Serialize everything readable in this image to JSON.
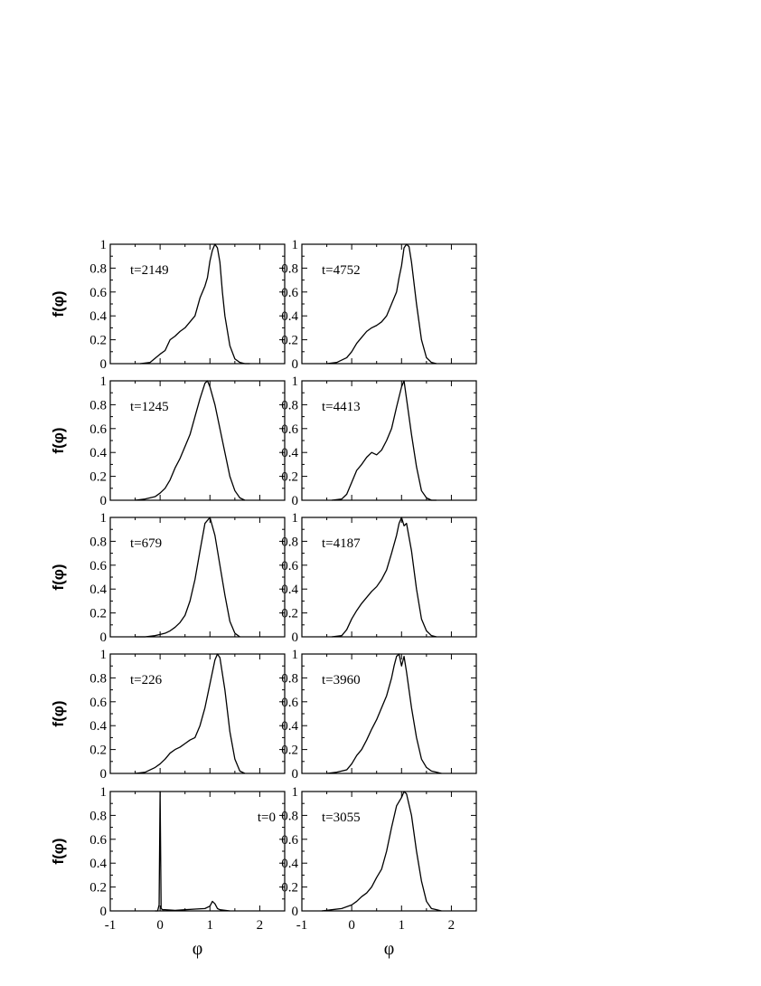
{
  "chart_data": {
    "type": "line",
    "layout": {
      "rows": 5,
      "cols": 2
    },
    "xlim": [
      -1,
      2.5
    ],
    "ylim": [
      0,
      1
    ],
    "xticks": [
      "-1",
      "0",
      "1",
      "2"
    ],
    "yticks": [
      "0",
      "0.2",
      "0.4",
      "0.6",
      "0.8",
      "1"
    ],
    "xlabel": "φ",
    "ylabel": "f(φ)",
    "grid": false,
    "panels": [
      {
        "label": "t=2149",
        "label_pos": "top-left",
        "x": [
          -0.4,
          -0.2,
          0,
          0.1,
          0.2,
          0.3,
          0.4,
          0.5,
          0.6,
          0.7,
          0.8,
          0.9,
          0.95,
          1.0,
          1.05,
          1.1,
          1.15,
          1.2,
          1.25,
          1.3,
          1.4,
          1.5,
          1.6,
          1.7,
          1.8
        ],
        "y": [
          0,
          0.01,
          0.08,
          0.11,
          0.2,
          0.23,
          0.27,
          0.3,
          0.35,
          0.4,
          0.55,
          0.65,
          0.72,
          0.86,
          0.95,
          1.0,
          0.97,
          0.85,
          0.6,
          0.4,
          0.15,
          0.04,
          0.01,
          0,
          0
        ]
      },
      {
        "label": "t=4752",
        "label_pos": "top-left",
        "x": [
          -0.5,
          -0.3,
          -0.1,
          0,
          0.1,
          0.2,
          0.3,
          0.4,
          0.5,
          0.6,
          0.7,
          0.8,
          0.9,
          0.95,
          1.0,
          1.05,
          1.1,
          1.15,
          1.2,
          1.3,
          1.4,
          1.5,
          1.6,
          1.7
        ],
        "y": [
          0,
          0.01,
          0.05,
          0.1,
          0.17,
          0.22,
          0.27,
          0.3,
          0.32,
          0.35,
          0.4,
          0.5,
          0.6,
          0.72,
          0.82,
          0.97,
          1.0,
          0.98,
          0.85,
          0.5,
          0.2,
          0.05,
          0.01,
          0
        ]
      },
      {
        "label": "t=1245",
        "label_pos": "top-left",
        "x": [
          -0.5,
          -0.3,
          -0.1,
          0,
          0.1,
          0.2,
          0.3,
          0.4,
          0.5,
          0.6,
          0.7,
          0.8,
          0.9,
          0.95,
          1.0,
          1.1,
          1.2,
          1.3,
          1.4,
          1.5,
          1.6,
          1.7
        ],
        "y": [
          0,
          0.01,
          0.03,
          0.06,
          0.1,
          0.17,
          0.27,
          0.35,
          0.45,
          0.55,
          0.7,
          0.85,
          0.98,
          1.0,
          0.95,
          0.8,
          0.6,
          0.4,
          0.2,
          0.08,
          0.02,
          0
        ]
      },
      {
        "label": "t=4413",
        "label_pos": "top-left",
        "x": [
          -0.4,
          -0.2,
          -0.1,
          0,
          0.1,
          0.2,
          0.3,
          0.4,
          0.5,
          0.6,
          0.7,
          0.8,
          0.9,
          1.0,
          1.05,
          1.1,
          1.2,
          1.3,
          1.4,
          1.5,
          1.6,
          1.7
        ],
        "y": [
          0,
          0.01,
          0.05,
          0.15,
          0.25,
          0.3,
          0.36,
          0.4,
          0.38,
          0.42,
          0.5,
          0.6,
          0.78,
          0.95,
          1.0,
          0.85,
          0.55,
          0.28,
          0.08,
          0.02,
          0,
          0
        ]
      },
      {
        "label": "t=679",
        "label_pos": "top-left",
        "x": [
          -0.5,
          -0.3,
          -0.1,
          0,
          0.1,
          0.2,
          0.3,
          0.4,
          0.5,
          0.6,
          0.7,
          0.8,
          0.9,
          1.0,
          1.1,
          1.2,
          1.3,
          1.4,
          1.5,
          1.6
        ],
        "y": [
          0,
          0,
          0.01,
          0.02,
          0.03,
          0.05,
          0.08,
          0.12,
          0.18,
          0.3,
          0.48,
          0.72,
          0.95,
          1.0,
          0.85,
          0.6,
          0.35,
          0.13,
          0.03,
          0
        ]
      },
      {
        "label": "t=4187",
        "label_pos": "top-left",
        "x": [
          -0.4,
          -0.2,
          -0.1,
          0,
          0.1,
          0.2,
          0.3,
          0.4,
          0.5,
          0.6,
          0.7,
          0.8,
          0.9,
          0.95,
          1.0,
          1.05,
          1.1,
          1.2,
          1.3,
          1.4,
          1.5,
          1.6,
          1.7
        ],
        "y": [
          0,
          0.01,
          0.06,
          0.15,
          0.22,
          0.28,
          0.33,
          0.38,
          0.42,
          0.48,
          0.56,
          0.7,
          0.85,
          0.95,
          1.0,
          0.93,
          0.95,
          0.72,
          0.4,
          0.15,
          0.05,
          0.01,
          0
        ]
      },
      {
        "label": "t=226",
        "label_pos": "top-left",
        "x": [
          -0.5,
          -0.3,
          -0.1,
          0,
          0.1,
          0.2,
          0.3,
          0.4,
          0.5,
          0.6,
          0.7,
          0.8,
          0.9,
          1.0,
          1.1,
          1.15,
          1.2,
          1.3,
          1.4,
          1.5,
          1.6,
          1.7
        ],
        "y": [
          0,
          0.01,
          0.05,
          0.08,
          0.12,
          0.17,
          0.2,
          0.22,
          0.25,
          0.28,
          0.3,
          0.4,
          0.55,
          0.75,
          0.95,
          1.0,
          0.97,
          0.7,
          0.35,
          0.12,
          0.02,
          0
        ]
      },
      {
        "label": "t=3960",
        "label_pos": "top-left",
        "x": [
          -0.5,
          -0.3,
          -0.1,
          0,
          0.1,
          0.2,
          0.3,
          0.4,
          0.5,
          0.6,
          0.7,
          0.8,
          0.85,
          0.9,
          0.95,
          1.0,
          1.05,
          1.1,
          1.2,
          1.3,
          1.4,
          1.5,
          1.6,
          1.7,
          1.8
        ],
        "y": [
          0,
          0.01,
          0.03,
          0.08,
          0.15,
          0.2,
          0.28,
          0.37,
          0.45,
          0.55,
          0.65,
          0.8,
          0.9,
          0.98,
          1.0,
          0.9,
          0.98,
          0.85,
          0.55,
          0.3,
          0.12,
          0.05,
          0.02,
          0.01,
          0
        ]
      },
      {
        "label": "t=0",
        "label_pos": "top-right",
        "x": [
          -0.1,
          -0.05,
          -0.02,
          0,
          0.02,
          0.05,
          0.1,
          0.3,
          0.5,
          0.7,
          0.9,
          1.0,
          1.05,
          1.1,
          1.15,
          1.2,
          1.4
        ],
        "y": [
          0,
          0,
          0.05,
          1.0,
          0.02,
          0.01,
          0.01,
          0.005,
          0.01,
          0.015,
          0.02,
          0.04,
          0.08,
          0.06,
          0.02,
          0.01,
          0
        ]
      },
      {
        "label": "t=3055",
        "label_pos": "top-left",
        "x": [
          -0.6,
          -0.4,
          -0.2,
          0,
          0.1,
          0.2,
          0.3,
          0.4,
          0.5,
          0.6,
          0.7,
          0.8,
          0.9,
          1.0,
          1.05,
          1.1,
          1.2,
          1.3,
          1.4,
          1.5,
          1.6,
          1.7,
          1.8
        ],
        "y": [
          0,
          0.01,
          0.02,
          0.05,
          0.08,
          0.12,
          0.15,
          0.2,
          0.28,
          0.35,
          0.5,
          0.7,
          0.88,
          0.95,
          1.0,
          0.98,
          0.8,
          0.5,
          0.25,
          0.08,
          0.02,
          0.01,
          0
        ]
      }
    ]
  }
}
